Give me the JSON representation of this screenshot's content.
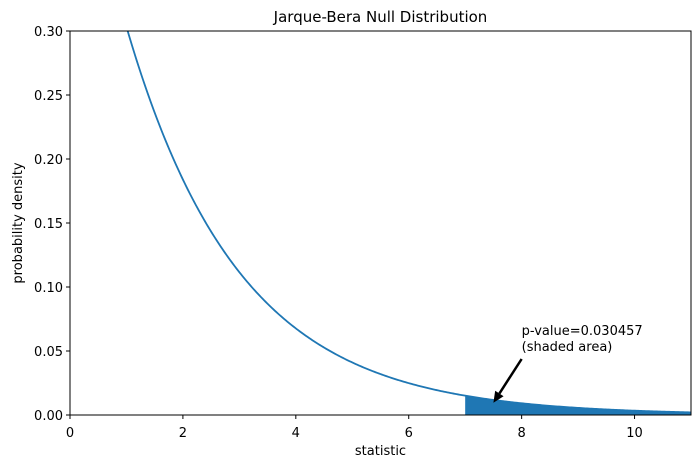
{
  "chart_data": {
    "type": "line",
    "title": "Jarque-Bera Null Distribution",
    "xlabel": "statistic",
    "ylabel": "probability density",
    "xlim": [
      0,
      11
    ],
    "ylim": [
      0,
      0.3
    ],
    "xticks": [
      0,
      2,
      4,
      6,
      8,
      10
    ],
    "xtick_labels": [
      "0",
      "2",
      "4",
      "6",
      "8",
      "10"
    ],
    "yticks": [
      0.0,
      0.05,
      0.1,
      0.15,
      0.2,
      0.25,
      0.3
    ],
    "ytick_labels": [
      "0.00",
      "0.05",
      "0.10",
      "0.15",
      "0.20",
      "0.25",
      "0.30"
    ],
    "grid": false,
    "series": [
      {
        "function": "0.5*exp(-x/2)",
        "x_range": [
          0,
          11
        ],
        "color": "#1f77b4"
      }
    ],
    "shaded_region": {
      "x_from": 7.0,
      "x_to": 11,
      "color": "#1f77b4"
    },
    "annotation": {
      "lines": [
        "p-value=0.030457",
        "(shaded area)"
      ],
      "text_at": [
        8.0,
        0.05
      ],
      "arrow_to": [
        7.5,
        0.008
      ]
    }
  }
}
